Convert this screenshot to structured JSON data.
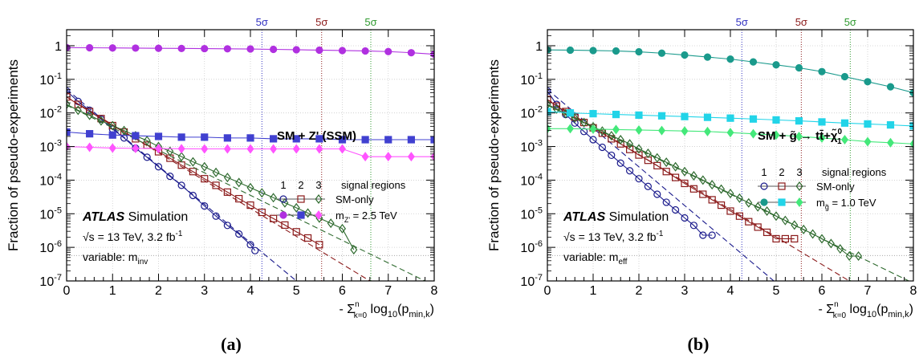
{
  "chart_data": [
    {
      "type": "scatter",
      "panel_label": "(a)",
      "xlabel": "- Σ_{k=0}^{n} log10(p_min,k)",
      "ylabel": "Fraction of pseudo-experiments",
      "xlim": [
        0,
        8
      ],
      "ylim": [
        1e-07,
        3
      ],
      "yscale": "log",
      "xticks": [
        "0",
        "1",
        "2",
        "3",
        "4",
        "5",
        "6",
        "7",
        "8"
      ],
      "yticks": [
        "10^-7",
        "10^-6",
        "10^-5",
        "10^-4",
        "10^-3",
        "10^-2",
        "10^-1",
        "1"
      ],
      "grid": true,
      "sigma_lines": [
        {
          "x": 4.25,
          "label": "5σ",
          "color": "#3030c0"
        },
        {
          "x": 5.55,
          "label": "5σ",
          "color": "#8b1a1a"
        },
        {
          "x": 6.62,
          "label": "5σ",
          "color": "#2e9a2e"
        }
      ],
      "reference_y": 5.7e-07,
      "annotation": "SM + Z' (SSM)",
      "legend_header": [
        "1",
        "2",
        "3",
        "signal regions"
      ],
      "legend_rows": [
        "SM-only",
        "m_Z' = 2.5 TeV"
      ],
      "atlas_label": "ATLAS",
      "atlas_sub": "Simulation",
      "energy_text": "√s = 13 TeV, 3.2 fb^-1",
      "variable_text": "variable: m_inv",
      "series": [
        {
          "group": "SM-only",
          "region": 1,
          "color": "#1a1a8c",
          "marker": "open-circle",
          "x": [
            0,
            0.25,
            0.5,
            0.75,
            1,
            1.25,
            1.5,
            1.75,
            2,
            2.25,
            2.5,
            2.75,
            3,
            3.25,
            3.5,
            3.75,
            4,
            4.1
          ],
          "y": [
            0.045,
            0.022,
            0.012,
            0.0065,
            0.0033,
            0.0018,
            0.0009,
            0.00048,
            0.00025,
            0.00013,
            7e-05,
            3.5e-05,
            1.7e-05,
            8.5e-06,
            4.5e-06,
            2.5e-06,
            1.2e-06,
            8e-07
          ],
          "fit": [
            [
              0,
              0.05
            ],
            [
              5.0,
              1e-07
            ]
          ]
        },
        {
          "group": "SM-only",
          "region": 2,
          "color": "#8b1a1a",
          "marker": "open-square",
          "x": [
            0,
            0.25,
            0.5,
            0.75,
            1,
            1.25,
            1.5,
            1.75,
            2,
            2.25,
            2.5,
            2.75,
            3,
            3.25,
            3.5,
            3.75,
            4,
            4.25,
            4.5,
            4.75,
            5,
            5.25,
            5.5
          ],
          "y": [
            0.03,
            0.018,
            0.011,
            0.0068,
            0.0042,
            0.0027,
            0.0017,
            0.0011,
            0.0007,
            0.00045,
            0.00028,
            0.00018,
            0.00011,
            7e-05,
            4.4e-05,
            2.8e-05,
            1.8e-05,
            1.1e-05,
            7.2e-06,
            4.6e-06,
            2.9e-06,
            1.9e-06,
            1.2e-06
          ],
          "fit": [
            [
              0,
              0.03
            ],
            [
              6.6,
              1e-07
            ]
          ]
        },
        {
          "group": "SM-only",
          "region": 3,
          "color": "#2e6a2e",
          "marker": "open-diamond",
          "x": [
            0,
            0.25,
            0.5,
            0.75,
            1,
            1.25,
            1.5,
            1.75,
            2,
            2.25,
            2.5,
            2.75,
            3,
            3.25,
            3.5,
            3.75,
            4,
            4.25,
            4.5,
            4.75,
            5,
            5.25,
            5.5,
            5.75,
            6,
            6.25
          ],
          "y": [
            0.018,
            0.012,
            0.0085,
            0.0058,
            0.0042,
            0.003,
            0.0021,
            0.0015,
            0.001,
            0.00072,
            0.0005,
            0.00035,
            0.00025,
            0.00017,
            0.00012,
            8.5e-05,
            6e-05,
            4.2e-05,
            3e-05,
            2.1e-05,
            1.5e-05,
            1.05e-05,
            7.4e-06,
            5.2e-06,
            3.6e-06,
            8.5e-07
          ],
          "fit": [
            [
              0,
              0.017
            ],
            [
              7.8,
              1e-07
            ]
          ]
        },
        {
          "group": "signal",
          "region": 1,
          "color": "#b030e0",
          "marker": "filled-circle",
          "x": [
            0,
            0.5,
            1,
            1.5,
            2,
            2.5,
            3,
            3.5,
            4,
            4.5,
            5,
            5.5,
            6,
            6.5,
            7,
            7.5,
            8
          ],
          "y": [
            0.88,
            0.87,
            0.86,
            0.85,
            0.84,
            0.83,
            0.82,
            0.81,
            0.8,
            0.78,
            0.76,
            0.74,
            0.72,
            0.7,
            0.67,
            0.62,
            0.56
          ]
        },
        {
          "group": "signal",
          "region": 2,
          "color": "#4040d0",
          "marker": "filled-square",
          "x": [
            0,
            0.5,
            1,
            1.5,
            2,
            2.5,
            3,
            3.5,
            4,
            4.5,
            5,
            5.5,
            6,
            6.5,
            7,
            7.5,
            8
          ],
          "y": [
            0.0027,
            0.0024,
            0.0022,
            0.0021,
            0.002,
            0.0019,
            0.0019,
            0.0018,
            0.0018,
            0.0017,
            0.0017,
            0.0017,
            0.0016,
            0.0016,
            0.0016,
            0.0016,
            0.0016
          ]
        },
        {
          "group": "signal",
          "region": 3,
          "color": "#ff55ff",
          "marker": "filled-diamond",
          "x": [
            0,
            0.5,
            1,
            1.5,
            2,
            2.5,
            3,
            3.5,
            4,
            4.5,
            5,
            5.5,
            6,
            6.5,
            7,
            7.5,
            8
          ],
          "y": [
            0.001,
            0.00095,
            0.0009,
            0.00088,
            0.00087,
            0.00086,
            0.00085,
            0.00085,
            0.00085,
            0.00085,
            0.00085,
            0.00085,
            0.00085,
            0.0005,
            0.0005,
            0.0005,
            0.0005
          ]
        }
      ]
    },
    {
      "type": "scatter",
      "panel_label": "(b)",
      "xlabel": "- Σ_{k=0}^{n} log10(p_min,k)",
      "ylabel": "Fraction of pseudo-experiments",
      "xlim": [
        0,
        8
      ],
      "ylim": [
        1e-07,
        3
      ],
      "yscale": "log",
      "xticks": [
        "0",
        "1",
        "2",
        "3",
        "4",
        "5",
        "6",
        "7",
        "8"
      ],
      "yticks": [
        "10^-7",
        "10^-6",
        "10^-5",
        "10^-4",
        "10^-3",
        "10^-2",
        "10^-1",
        "1"
      ],
      "grid": true,
      "sigma_lines": [
        {
          "x": 4.25,
          "label": "5σ",
          "color": "#3030c0"
        },
        {
          "x": 5.55,
          "label": "5σ",
          "color": "#8b1a1a"
        },
        {
          "x": 6.62,
          "label": "5σ",
          "color": "#2e9a2e"
        }
      ],
      "reference_y": 5.7e-07,
      "annotation": "SM + g̃ → tt̄+χ̃₁⁰",
      "legend_header": [
        "1",
        "2",
        "3",
        "signal regions"
      ],
      "legend_rows": [
        "SM-only",
        "m_g̃ = 1.0 TeV"
      ],
      "atlas_label": "ATLAS",
      "atlas_sub": "Simulation",
      "energy_text": "√s = 13 TeV, 3.2 fb^-1",
      "variable_text": "variable: m_eff",
      "series": [
        {
          "group": "SM-only",
          "region": 1,
          "color": "#1a1a8c",
          "marker": "open-circle",
          "x": [
            0,
            0.2,
            0.4,
            0.6,
            0.8,
            1,
            1.2,
            1.4,
            1.6,
            1.8,
            2,
            2.2,
            2.4,
            2.6,
            2.8,
            3,
            3.2,
            3.4,
            3.6
          ],
          "y": [
            0.045,
            0.018,
            0.009,
            0.005,
            0.0028,
            0.0016,
            0.00095,
            0.00055,
            0.00032,
            0.00019,
            0.00011,
            6.5e-05,
            3.8e-05,
            2.2e-05,
            1.3e-05,
            7.5e-06,
            4.5e-06,
            2.3e-06,
            2.3e-06
          ],
          "fit": [
            [
              0,
              0.05
            ],
            [
              4.95,
              1e-07
            ]
          ]
        },
        {
          "group": "SM-only",
          "region": 2,
          "color": "#8b1a1a",
          "marker": "open-square",
          "x": [
            0,
            0.2,
            0.4,
            0.6,
            0.8,
            1,
            1.2,
            1.4,
            1.6,
            1.8,
            2,
            2.2,
            2.4,
            2.6,
            2.8,
            3,
            3.2,
            3.4,
            3.6,
            3.8,
            4,
            4.2,
            4.4,
            4.6,
            4.8,
            5,
            5.2,
            5.4
          ],
          "y": [
            0.025,
            0.016,
            0.011,
            0.0075,
            0.0052,
            0.0036,
            0.0025,
            0.0017,
            0.0012,
            0.00082,
            0.00056,
            0.00039,
            0.00027,
            0.00018,
            0.00012,
            8e-05,
            5.5e-05,
            3.8e-05,
            2.6e-05,
            1.8e-05,
            1.2e-05,
            8.5e-06,
            5.8e-06,
            4e-06,
            2.8e-06,
            1.8e-06,
            1.8e-06,
            1.8e-06
          ],
          "fit": [
            [
              0,
              0.025
            ],
            [
              6.6,
              1e-07
            ]
          ]
        },
        {
          "group": "SM-only",
          "region": 3,
          "color": "#2e6a2e",
          "marker": "open-diamond",
          "x": [
            0,
            0.2,
            0.4,
            0.6,
            0.8,
            1,
            1.2,
            1.4,
            1.6,
            1.8,
            2,
            2.2,
            2.4,
            2.6,
            2.8,
            3,
            3.2,
            3.4,
            3.6,
            3.8,
            4,
            4.2,
            4.4,
            4.6,
            4.8,
            5,
            5.2,
            5.4,
            5.6,
            5.8,
            6,
            6.2,
            6.4,
            6.6,
            6.8
          ],
          "y": [
            0.018,
            0.013,
            0.0095,
            0.007,
            0.0052,
            0.0039,
            0.0029,
            0.0021,
            0.0016,
            0.0012,
            0.00085,
            0.00063,
            0.00046,
            0.00034,
            0.00025,
            0.00018,
            0.000135,
            0.0001,
            7.3e-05,
            5.4e-05,
            4e-05,
            2.9e-05,
            2.1e-05,
            1.6e-05,
            1.2e-05,
            8.5e-06,
            6.3e-06,
            4.6e-06,
            3.4e-06,
            2.5e-06,
            1.8e-06,
            1.3e-06,
            9e-07,
            5.5e-07,
            5.5e-07
          ],
          "fit": [
            [
              0,
              0.017
            ],
            [
              7.9,
              1e-07
            ]
          ]
        },
        {
          "group": "signal",
          "region": 1,
          "color": "#1a9a8c",
          "marker": "filled-circle",
          "x": [
            0,
            0.5,
            1,
            1.5,
            2,
            2.5,
            3,
            3.5,
            4,
            4.5,
            5,
            5.5,
            6,
            6.5,
            7,
            7.5,
            8
          ],
          "y": [
            0.75,
            0.74,
            0.72,
            0.7,
            0.66,
            0.6,
            0.53,
            0.46,
            0.4,
            0.33,
            0.27,
            0.22,
            0.17,
            0.12,
            0.085,
            0.06,
            0.04
          ]
        },
        {
          "group": "signal",
          "region": 2,
          "color": "#22d4e8",
          "marker": "filled-square",
          "x": [
            0,
            0.5,
            1,
            1.5,
            2,
            2.5,
            3,
            3.5,
            4,
            4.5,
            5,
            5.5,
            6,
            6.5,
            7,
            7.5,
            8
          ],
          "y": [
            0.011,
            0.01,
            0.0095,
            0.009,
            0.0086,
            0.0082,
            0.0078,
            0.0074,
            0.007,
            0.0066,
            0.0062,
            0.0058,
            0.0054,
            0.005,
            0.0047,
            0.0044,
            0.0041
          ]
        },
        {
          "group": "signal",
          "region": 3,
          "color": "#44e87a",
          "marker": "filled-diamond",
          "x": [
            0,
            0.5,
            1,
            1.5,
            2,
            2.5,
            3,
            3.5,
            4,
            4.5,
            5,
            5.5,
            6,
            6.5,
            7,
            7.5,
            8
          ],
          "y": [
            0.0034,
            0.0034,
            0.0033,
            0.0032,
            0.0031,
            0.003,
            0.0029,
            0.0028,
            0.0026,
            0.0024,
            0.0022,
            0.002,
            0.0018,
            0.0016,
            0.0014,
            0.0013,
            0.0012
          ]
        }
      ]
    }
  ]
}
